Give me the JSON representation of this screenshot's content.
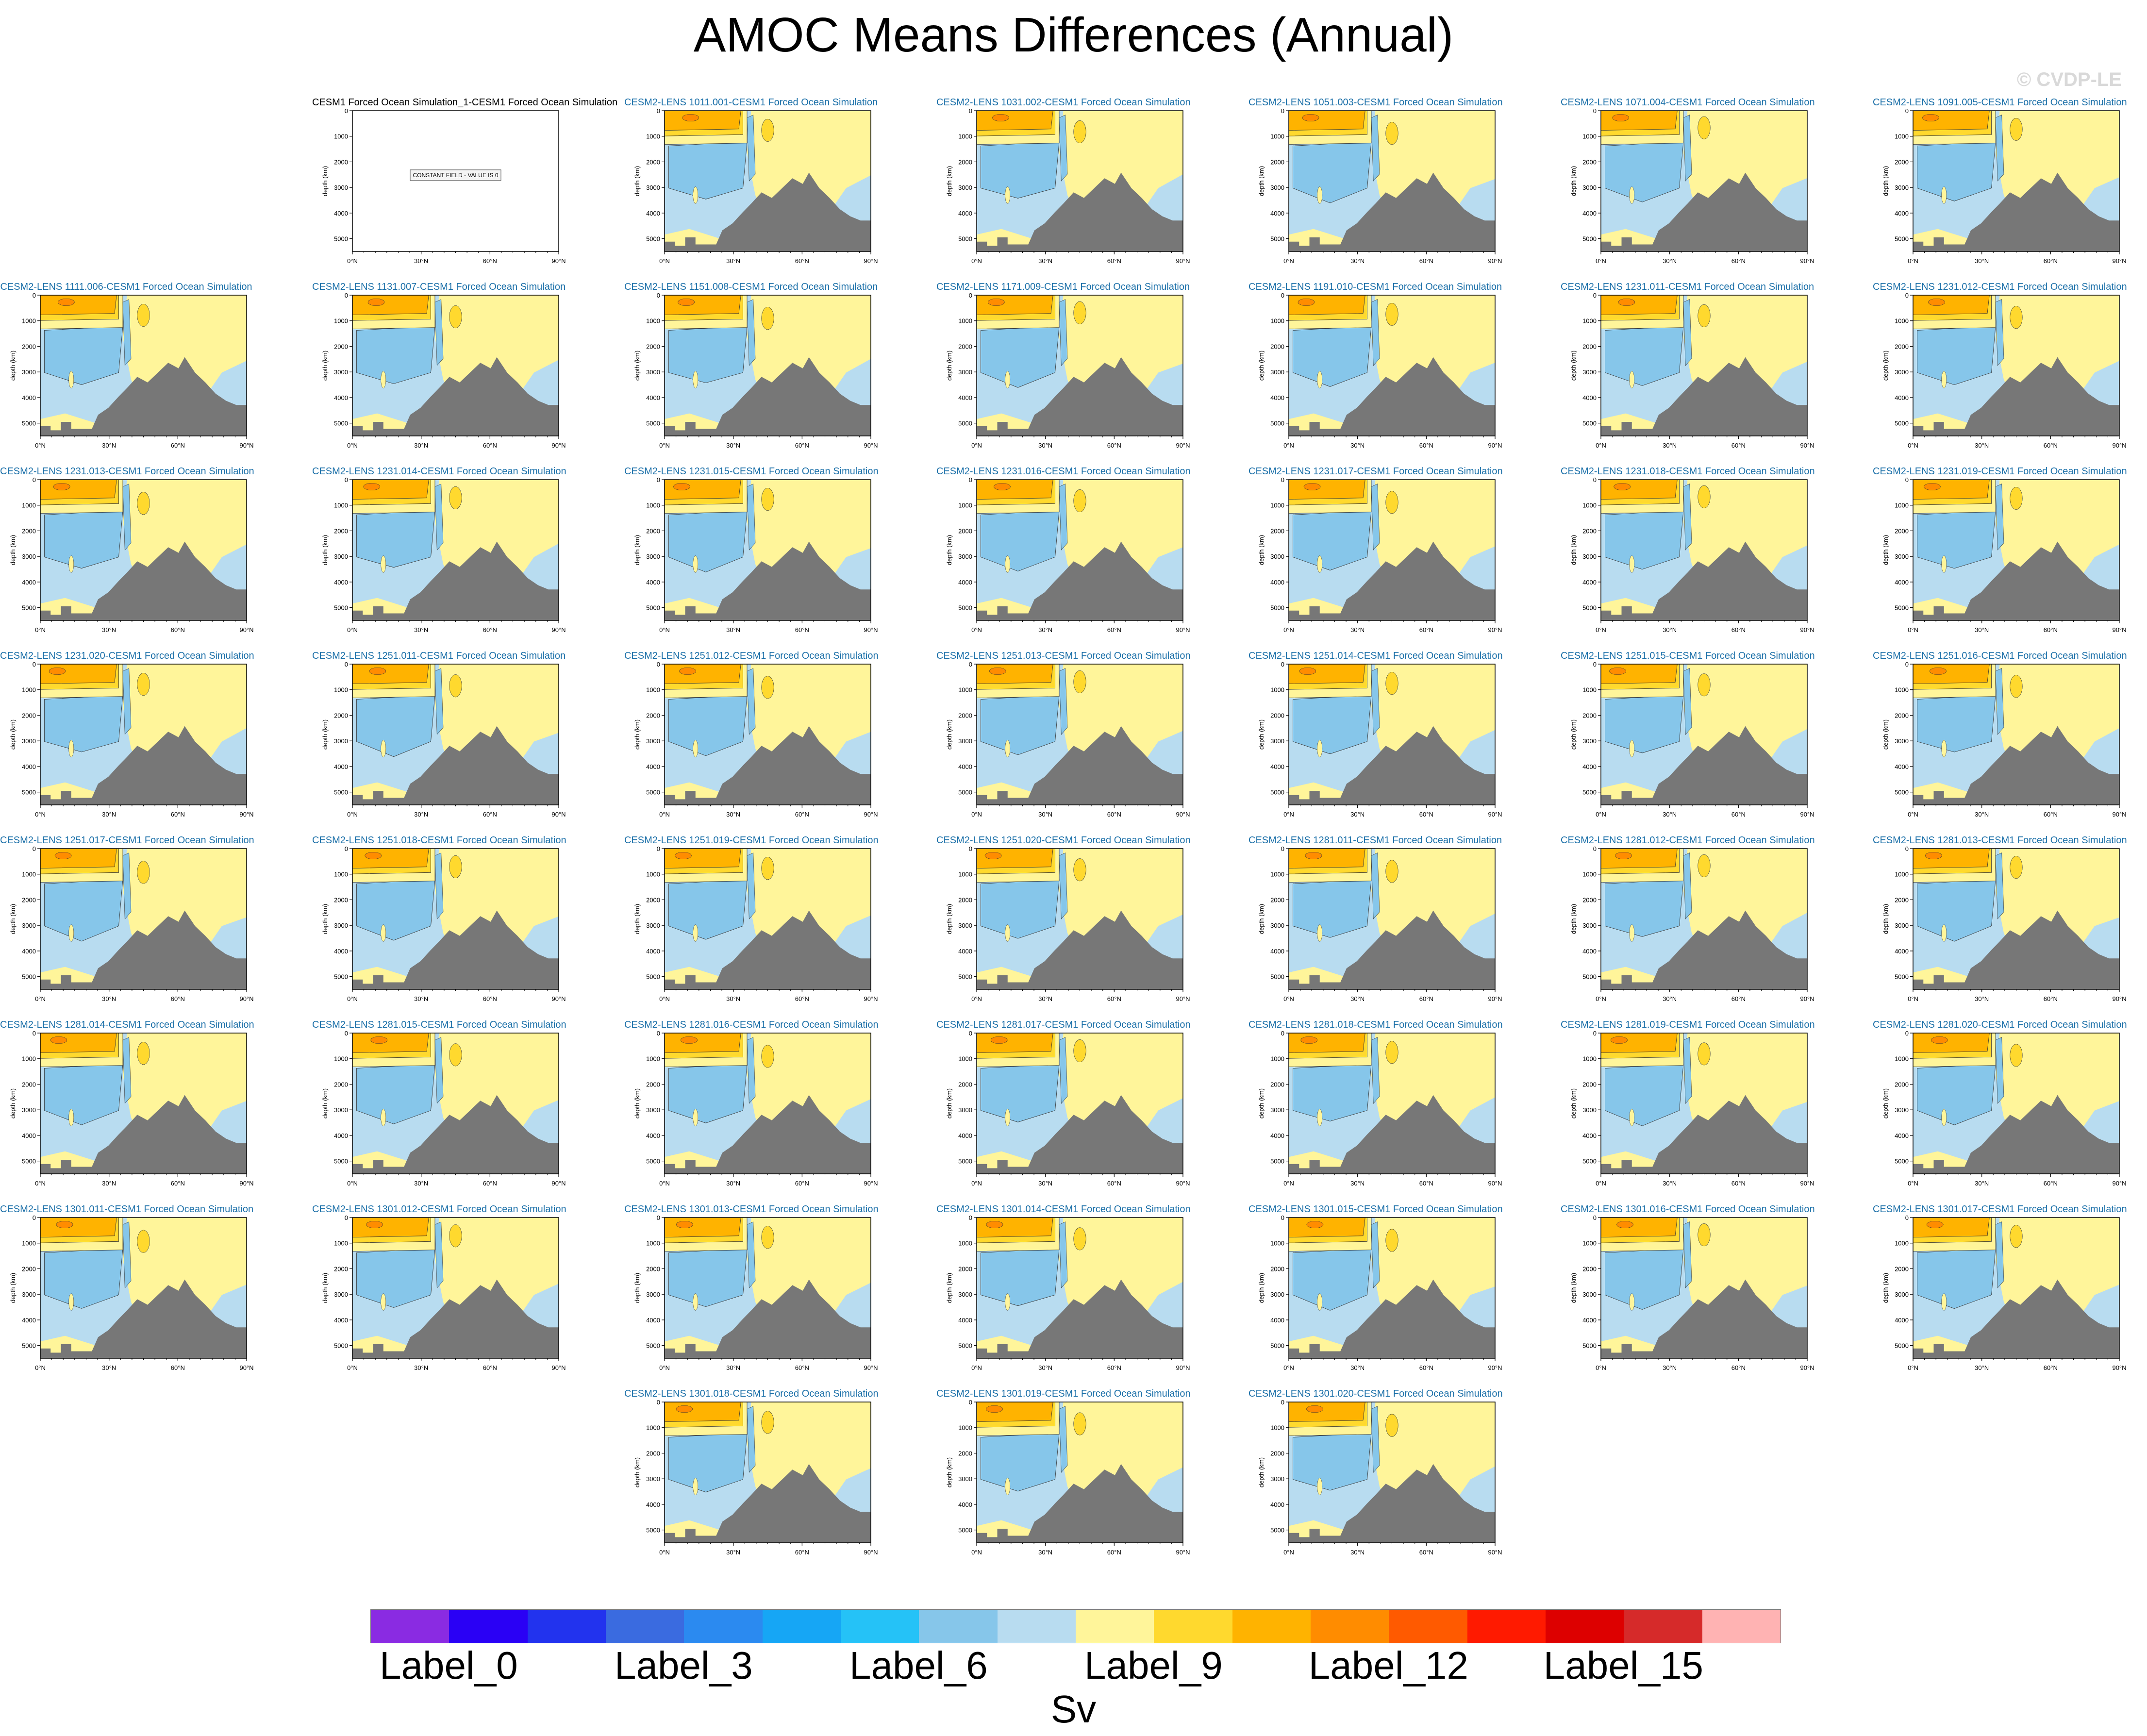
{
  "title": "AMOC Means Differences (Annual)",
  "watermark": "© CVDP-LE",
  "axis": {
    "y_label": "depth (km)",
    "y_ticks": [
      "1000",
      "2000",
      "3000",
      "4000",
      "5000"
    ],
    "x_ticks": [
      "0°N",
      "30°N",
      "60°N",
      "90°N"
    ],
    "y0_tick": "0"
  },
  "reference_panel": {
    "title": "CESM1 Forced Ocean Simulation_1-CESM1 Forced Ocean Simulation",
    "note": "CONSTANT FIELD - VALUE IS 0"
  },
  "panel_titles": [
    "CESM2-LENS 1011.001-CESM1 Forced Ocean Simulation",
    "CESM2-LENS 1031.002-CESM1 Forced Ocean Simulation",
    "CESM2-LENS 1051.003-CESM1 Forced Ocean Simulation",
    "CESM2-LENS 1071.004-CESM1 Forced Ocean Simulation",
    "CESM2-LENS 1091.005-CESM1 Forced Ocean Simulation",
    "CESM2-LENS 1111.006-CESM1 Forced Ocean Simulation",
    "CESM2-LENS 1131.007-CESM1 Forced Ocean Simulation",
    "CESM2-LENS 1151.008-CESM1 Forced Ocean Simulation",
    "CESM2-LENS 1171.009-CESM1 Forced Ocean Simulation",
    "CESM2-LENS 1191.010-CESM1 Forced Ocean Simulation",
    "CESM2-LENS 1231.011-CESM1 Forced Ocean Simulation",
    "CESM2-LENS 1231.012-CESM1 Forced Ocean Simulation",
    "CESM2-LENS 1231.013-CESM1 Forced Ocean Simulation",
    "CESM2-LENS 1231.014-CESM1 Forced Ocean Simulation",
    "CESM2-LENS 1231.015-CESM1 Forced Ocean Simulation",
    "CESM2-LENS 1231.016-CESM1 Forced Ocean Simulation",
    "CESM2-LENS 1231.017-CESM1 Forced Ocean Simulation",
    "CESM2-LENS 1231.018-CESM1 Forced Ocean Simulation",
    "CESM2-LENS 1231.019-CESM1 Forced Ocean Simulation",
    "CESM2-LENS 1231.020-CESM1 Forced Ocean Simulation",
    "CESM2-LENS 1251.011-CESM1 Forced Ocean Simulation",
    "CESM2-LENS 1251.012-CESM1 Forced Ocean Simulation",
    "CESM2-LENS 1251.013-CESM1 Forced Ocean Simulation",
    "CESM2-LENS 1251.014-CESM1 Forced Ocean Simulation",
    "CESM2-LENS 1251.015-CESM1 Forced Ocean Simulation",
    "CESM2-LENS 1251.016-CESM1 Forced Ocean Simulation",
    "CESM2-LENS 1251.017-CESM1 Forced Ocean Simulation",
    "CESM2-LENS 1251.018-CESM1 Forced Ocean Simulation",
    "CESM2-LENS 1251.019-CESM1 Forced Ocean Simulation",
    "CESM2-LENS 1251.020-CESM1 Forced Ocean Simulation",
    "CESM2-LENS 1281.011-CESM1 Forced Ocean Simulation",
    "CESM2-LENS 1281.012-CESM1 Forced Ocean Simulation",
    "CESM2-LENS 1281.013-CESM1 Forced Ocean Simulation",
    "CESM2-LENS 1281.014-CESM1 Forced Ocean Simulation",
    "CESM2-LENS 1281.015-CESM1 Forced Ocean Simulation",
    "CESM2-LENS 1281.016-CESM1 Forced Ocean Simulation",
    "CESM2-LENS 1281.017-CESM1 Forced Ocean Simulation",
    "CESM2-LENS 1281.018-CESM1 Forced Ocean Simulation",
    "CESM2-LENS 1281.019-CESM1 Forced Ocean Simulation",
    "CESM2-LENS 1281.020-CESM1 Forced Ocean Simulation",
    "CESM2-LENS 1301.011-CESM1 Forced Ocean Simulation",
    "CESM2-LENS 1301.012-CESM1 Forced Ocean Simulation",
    "CESM2-LENS 1301.013-CESM1 Forced Ocean Simulation",
    "CESM2-LENS 1301.014-CESM1 Forced Ocean Simulation",
    "CESM2-LENS 1301.015-CESM1 Forced Ocean Simulation",
    "CESM2-LENS 1301.016-CESM1 Forced Ocean Simulation",
    "CESM2-LENS 1301.017-CESM1 Forced Ocean Simulation",
    "CESM2-LENS 1301.018-CESM1 Forced Ocean Simulation",
    "CESM2-LENS 1301.019-CESM1 Forced Ocean Simulation",
    "CESM2-LENS 1301.020-CESM1 Forced Ocean Simulation"
  ],
  "colorbar": {
    "colors": [
      "#8a2be2",
      "#2a00f5",
      "#2233ee",
      "#3a6be0",
      "#2b8af0",
      "#16a6f5",
      "#25c2f7",
      "#86c6ea",
      "#b8dcf0",
      "#fff59a",
      "#ffd92e",
      "#ffb300",
      "#ff8c00",
      "#ff5a00",
      "#ff1a00",
      "#dd0000",
      "#d62a2a",
      "#ffb3b3"
    ],
    "labels": [
      "Label_0",
      "Label_3",
      "Label_6",
      "Label_9",
      "Label_12",
      "Label_15"
    ],
    "label_indices": [
      0,
      3,
      6,
      9,
      12,
      15
    ],
    "units": "Sv"
  },
  "chart_data": {
    "type": "heatmap",
    "title": "AMOC Means Differences (Annual)",
    "panels": 51,
    "xlabel": "",
    "ylabel": "depth (km)",
    "xlim": [
      "0°N",
      "90°N"
    ],
    "ylim": [
      0,
      5500
    ],
    "colorbar_units": "Sv",
    "colorbar_labels": [
      "Label_0",
      "Label_3",
      "Label_6",
      "Label_9",
      "Label_12",
      "Label_15"
    ],
    "reference_panel_note": "CONSTANT FIELD - VALUE IS 0"
  }
}
